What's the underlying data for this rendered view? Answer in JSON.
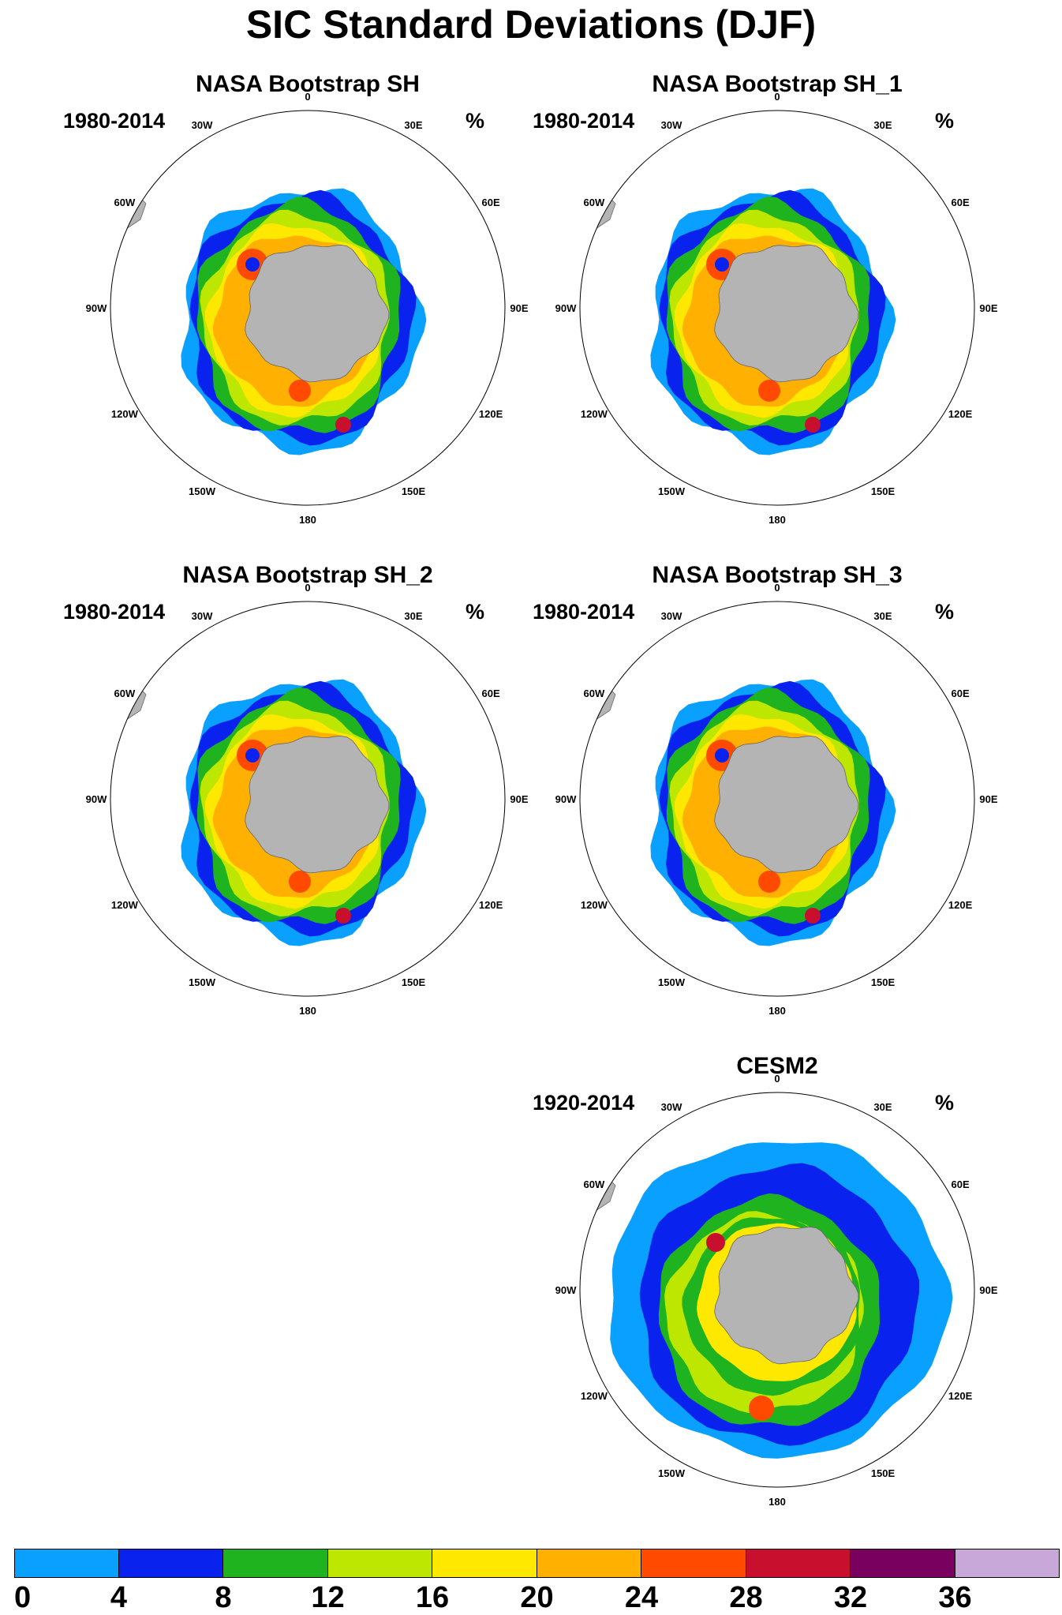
{
  "title": "SIC Standard Deviations (DJF)",
  "unit": "%",
  "longitude_labels": [
    "0",
    "30E",
    "60E",
    "90E",
    "120E",
    "150E",
    "180",
    "150W",
    "120W",
    "90W",
    "60W",
    "30W"
  ],
  "panels": [
    {
      "title": "NASA Bootstrap SH",
      "years": "1980-2014",
      "unit": "%"
    },
    {
      "title": "NASA Bootstrap SH_1",
      "years": "1980-2014",
      "unit": "%"
    },
    {
      "title": "NASA Bootstrap SH_2",
      "years": "1980-2014",
      "unit": "%"
    },
    {
      "title": "NASA Bootstrap SH_3",
      "years": "1980-2014",
      "unit": "%"
    },
    {
      "title": "CESM2",
      "years": "1920-2014",
      "unit": "%"
    }
  ],
  "colorbar": {
    "labels": [
      "0",
      "4",
      "8",
      "12",
      "16",
      "20",
      "24",
      "28",
      "32",
      "36"
    ],
    "colors": [
      "#0aa0ff",
      "#0a22ee",
      "#1fb41f",
      "#bde600",
      "#ffe800",
      "#ffb000",
      "#ff4a00",
      "#c8102e",
      "#7a0060",
      "#c8a8d8"
    ]
  },
  "colors": {
    "land": "#b4b4b4",
    "ocean": "#ffffff",
    "circle": "#000000"
  }
}
